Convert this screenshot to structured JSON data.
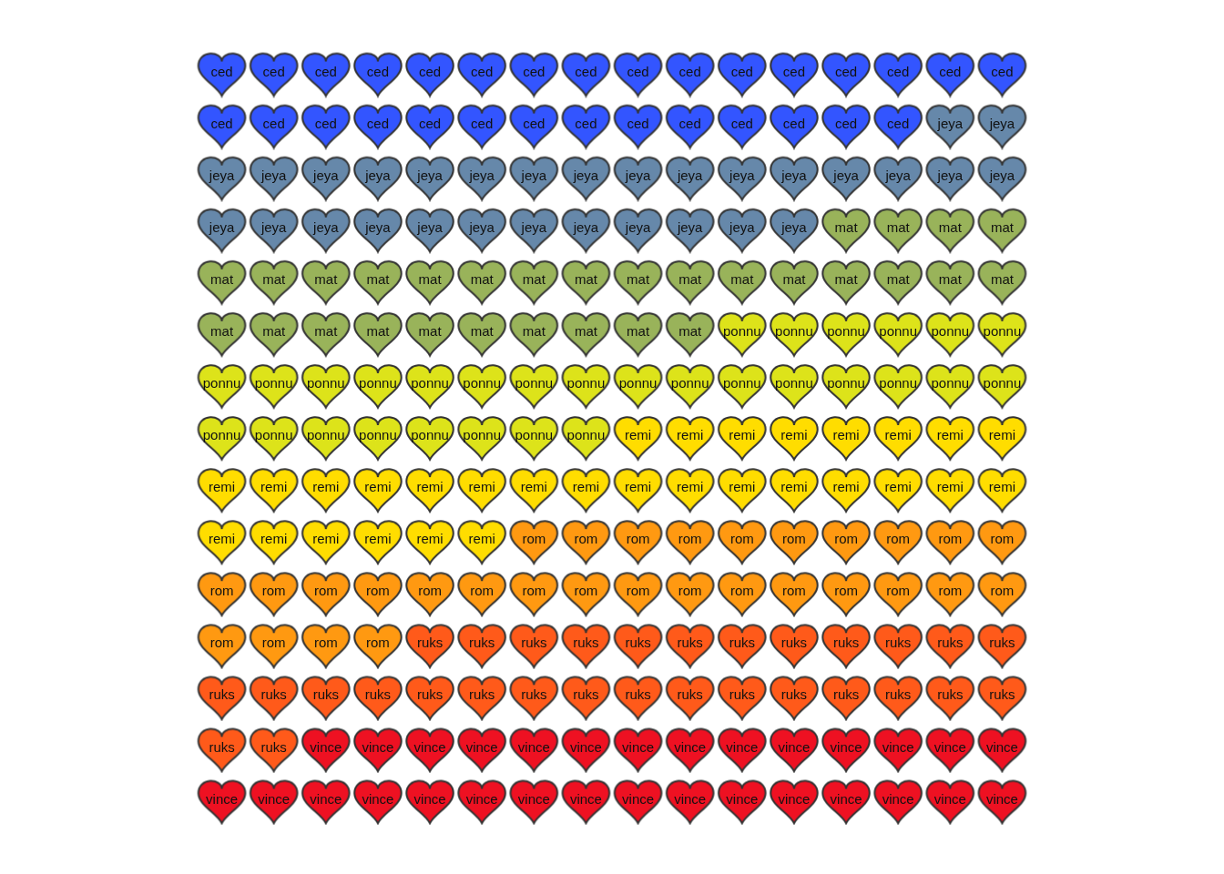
{
  "chart_data": {
    "type": "waffle",
    "categories": [
      "ced",
      "jeya",
      "mat",
      "ponnu",
      "remi",
      "rom",
      "ruks",
      "vince"
    ],
    "values": [
      30,
      30,
      30,
      30,
      30,
      30,
      30,
      30
    ],
    "colors": [
      "#3355ff",
      "#6688aa",
      "#99b35a",
      "#dde31a",
      "#ffdd00",
      "#ff9911",
      "#ff5a1a",
      "#ee1122"
    ],
    "data_labels": true,
    "tick_labels": false
  }
}
